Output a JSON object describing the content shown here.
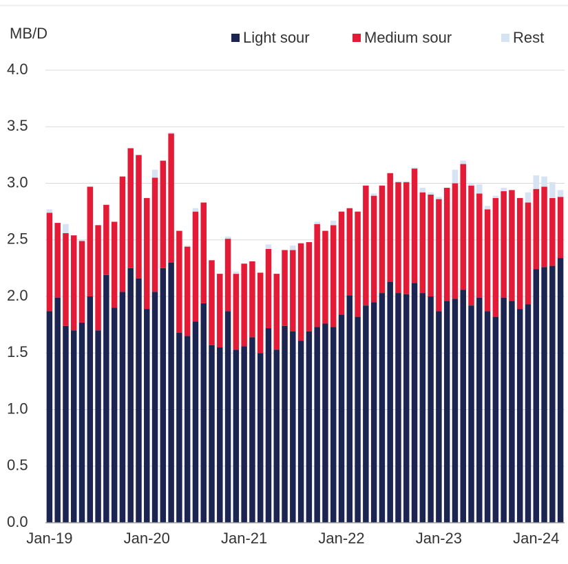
{
  "chart_data": {
    "type": "stacked_bar",
    "y_label": "MB/D",
    "categories": [
      "Jan-19",
      null,
      null,
      null,
      null,
      null,
      null,
      null,
      null,
      null,
      null,
      null,
      "Jan-20",
      null,
      null,
      null,
      null,
      null,
      null,
      null,
      null,
      null,
      null,
      null,
      "Jan-21",
      null,
      null,
      null,
      null,
      null,
      null,
      null,
      null,
      null,
      null,
      null,
      "Jan-22",
      null,
      null,
      null,
      null,
      null,
      null,
      null,
      null,
      null,
      null,
      null,
      "Jan-23",
      null,
      null,
      null,
      null,
      null,
      null,
      null,
      null,
      null,
      null,
      null,
      "Jan-24",
      null,
      null,
      null
    ],
    "series": [
      {
        "name": "Light sour",
        "color": "#1c2452",
        "values": [
          1.87,
          1.99,
          1.74,
          1.7,
          1.77,
          2.0,
          1.7,
          2.19,
          1.9,
          2.04,
          2.25,
          2.16,
          1.89,
          2.04,
          2.25,
          2.3,
          1.68,
          1.65,
          1.78,
          1.94,
          1.57,
          1.55,
          1.87,
          1.53,
          1.56,
          1.64,
          1.5,
          1.72,
          1.53,
          1.74,
          1.69,
          1.61,
          1.69,
          1.73,
          1.76,
          1.73,
          1.84,
          2.01,
          1.82,
          1.92,
          1.95,
          2.03,
          2.13,
          2.03,
          2.02,
          2.12,
          2.03,
          2.0,
          1.87,
          1.96,
          1.98,
          2.06,
          1.92,
          1.99,
          1.87,
          1.82,
          1.99,
          1.96,
          1.89,
          1.93,
          2.24,
          2.26,
          2.27,
          2.34
        ]
      },
      {
        "name": "Medium sour",
        "color": "#e31b37",
        "values": [
          0.87,
          0.66,
          0.82,
          0.84,
          0.72,
          0.97,
          0.93,
          0.62,
          0.76,
          1.02,
          1.06,
          1.09,
          0.98,
          1.01,
          0.95,
          1.14,
          0.9,
          0.79,
          0.97,
          0.89,
          0.75,
          0.65,
          0.64,
          0.67,
          0.73,
          0.67,
          0.71,
          0.7,
          0.67,
          0.67,
          0.72,
          0.86,
          0.79,
          0.91,
          0.82,
          0.9,
          0.91,
          0.77,
          0.93,
          1.06,
          0.94,
          0.95,
          0.96,
          0.98,
          0.99,
          1.01,
          0.89,
          0.9,
          0.99,
          1.0,
          1.02,
          1.11,
          1.06,
          0.92,
          0.9,
          1.05,
          0.94,
          0.98,
          0.98,
          0.9,
          0.71,
          0.71,
          0.6,
          0.54
        ]
      },
      {
        "name": "Rest",
        "color": "#d6e3f3",
        "values": [
          0.03,
          0,
          0.08,
          0,
          0.01,
          0,
          0,
          0,
          0,
          0,
          0,
          0,
          0,
          0.07,
          0,
          0.01,
          0,
          0.01,
          0.03,
          0,
          0,
          0,
          0.02,
          0.02,
          0,
          0,
          0,
          0.04,
          0,
          0,
          0.04,
          0,
          0,
          0.02,
          0,
          0.04,
          0,
          0,
          0,
          0,
          0.02,
          0,
          0,
          0.01,
          0.01,
          0.01,
          0.04,
          0.02,
          0.02,
          0,
          0.12,
          0.03,
          0.02,
          0.08,
          0.03,
          0.02,
          0.03,
          0,
          0,
          0.09,
          0.12,
          0.09,
          0.14,
          0.06
        ]
      }
    ],
    "ylim": [
      0,
      4
    ],
    "yticks": [
      {
        "value": 0,
        "label": "0.0"
      },
      0.5,
      {
        "value": 1,
        "label": "1.0"
      },
      1.5,
      {
        "value": 2,
        "label": "2.0"
      },
      2.5,
      {
        "value": 3,
        "label": "3.0"
      },
      3.5,
      {
        "value": 4,
        "label": "4.0"
      }
    ],
    "grid": true,
    "legend": "top-right"
  }
}
